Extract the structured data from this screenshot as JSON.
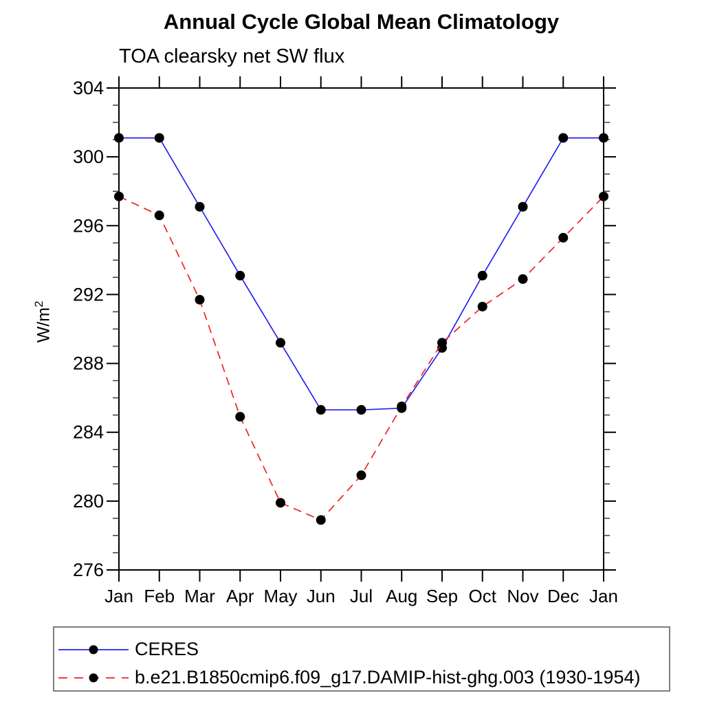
{
  "title": "Annual Cycle Global Mean Climatology",
  "subtitle": "TOA clearsky net SW flux",
  "chart_data": {
    "type": "line",
    "categories": [
      "Jan",
      "Feb",
      "Mar",
      "Apr",
      "May",
      "Jun",
      "Jul",
      "Aug",
      "Sep",
      "Oct",
      "Nov",
      "Dec",
      "Jan"
    ],
    "xlabel": "",
    "ylabel": "W/m²",
    "ylabel_base": "W/m",
    "ylabel_sup": "2",
    "ylim": [
      276,
      304
    ],
    "yticks": [
      276,
      280,
      284,
      288,
      292,
      296,
      300,
      304
    ],
    "ytick_minor_step": 1,
    "grid": false,
    "legend_position": "bottom-left",
    "series": [
      {
        "name": "CERES",
        "color": "#2222ee",
        "style": "solid",
        "marker": "circle",
        "marker_color": "#000000",
        "values": [
          301.1,
          301.1,
          297.1,
          293.1,
          289.2,
          285.3,
          285.3,
          285.4,
          288.9,
          293.1,
          297.1,
          301.1,
          301.1
        ]
      },
      {
        "name": "b.e21.B1850cmip6.f09_g17.DAMIP-hist-ghg.003 (1930-1954)",
        "color": "#ee2222",
        "style": "dashed",
        "marker": "circle",
        "marker_color": "#000000",
        "values": [
          297.7,
          296.6,
          291.7,
          284.9,
          279.9,
          278.9,
          281.5,
          285.5,
          289.2,
          291.3,
          292.9,
          295.3,
          297.7
        ]
      }
    ]
  }
}
